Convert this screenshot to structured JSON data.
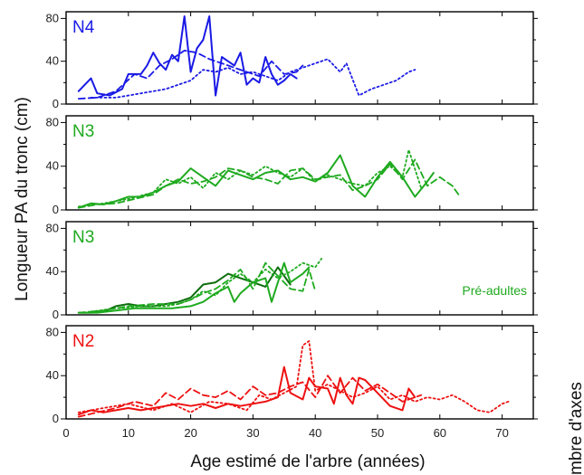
{
  "chart_data": {
    "type": "line",
    "xlabel": "Age estimé de l'arbre (années)",
    "ylabel": "Longueur PA du tronc (cm)",
    "right_label": "mbre d'axes",
    "xlim": [
      0,
      75
    ],
    "x_ticks": [
      0,
      10,
      20,
      30,
      40,
      50,
      60,
      70
    ],
    "ylim": [
      0,
      82
    ],
    "y_ticks": [
      0,
      40,
      80
    ],
    "grid": false,
    "panels": [
      {
        "label": "N4",
        "color": "#1a1ae6",
        "annotation": "",
        "series": [
          {
            "style": "solid",
            "x": [
              2,
              4,
              5,
              7,
              9,
              10,
              12,
              13,
              14,
              15,
              16,
              17,
              18,
              19,
              20,
              21,
              22,
              23,
              24,
              25,
              26,
              27,
              28,
              29,
              30,
              31,
              32,
              33,
              34,
              35,
              36,
              37
            ],
            "y": [
              12,
              24,
              10,
              8,
              14,
              28,
              28,
              36,
              48,
              38,
              32,
              46,
              40,
              82,
              30,
              52,
              60,
              82,
              8,
              44,
              40,
              36,
              48,
              18,
              24,
              20,
              44,
              28,
              18,
              22,
              28,
              24
            ]
          },
          {
            "style": "dashed",
            "x": [
              2,
              5,
              8,
              11,
              13,
              15,
              17,
              19,
              21,
              23,
              25,
              27,
              29,
              31,
              33,
              35,
              37,
              38
            ],
            "y": [
              5,
              6,
              12,
              28,
              24,
              36,
              42,
              50,
              48,
              42,
              38,
              34,
              30,
              26,
              40,
              28,
              30,
              36
            ]
          },
          {
            "style": "dotted",
            "x": [
              4,
              8,
              12,
              16,
              20,
              22,
              24,
              26,
              28,
              30,
              32,
              34,
              36,
              38,
              40,
              42,
              44,
              45,
              47,
              49,
              51,
              53,
              55,
              56
            ],
            "y": [
              6,
              6,
              10,
              14,
              22,
              32,
              30,
              34,
              28,
              30,
              26,
              22,
              30,
              34,
              38,
              42,
              30,
              38,
              8,
              14,
              18,
              22,
              30,
              32
            ]
          }
        ]
      },
      {
        "label": "N3",
        "color": "#1faa1f",
        "annotation": "",
        "series": [
          {
            "style": "solid",
            "x": [
              2,
              4,
              6,
              8,
              10,
              12,
              14,
              16,
              18,
              20,
              22,
              24,
              26,
              28,
              30,
              32,
              34,
              36,
              38,
              40,
              42,
              44,
              46,
              48,
              50,
              52,
              54,
              56,
              58,
              59
            ],
            "y": [
              2,
              6,
              5,
              8,
              12,
              12,
              16,
              22,
              26,
              38,
              30,
              22,
              36,
              32,
              28,
              34,
              36,
              28,
              30,
              26,
              34,
              50,
              22,
              12,
              30,
              44,
              30,
              12,
              26,
              34
            ]
          },
          {
            "style": "dashed",
            "x": [
              2,
              5,
              8,
              11,
              14,
              16,
              18,
              20,
              22,
              24,
              26,
              28,
              30,
              32,
              34,
              36,
              38,
              40,
              42,
              44,
              46,
              48,
              50,
              52,
              54,
              56,
              58,
              60,
              62,
              63
            ],
            "y": [
              2,
              5,
              6,
              10,
              14,
              22,
              28,
              24,
              26,
              30,
              38,
              36,
              30,
              28,
              24,
              36,
              38,
              28,
              30,
              32,
              18,
              22,
              28,
              42,
              28,
              46,
              22,
              30,
              22,
              14
            ]
          },
          {
            "style": "dotted",
            "x": [
              2,
              6,
              10,
              14,
              16,
              18,
              20,
              22,
              24,
              26,
              28,
              30,
              32,
              34,
              36,
              38,
              40,
              42,
              44,
              46,
              48,
              50,
              52,
              54,
              55,
              57
            ],
            "y": [
              3,
              6,
              10,
              16,
              28,
              24,
              30,
              20,
              34,
              28,
              36,
              32,
              40,
              34,
              30,
              38,
              26,
              32,
              28,
              24,
              22,
              34,
              40,
              30,
              55,
              20
            ]
          }
        ]
      },
      {
        "label": "N3",
        "color": "#1faa1f",
        "annotation": "Pré-adultes",
        "series": [
          {
            "style": "solid",
            "color": "#0e6e0e",
            "x": [
              2,
              4,
              6,
              8,
              10,
              12,
              14,
              16,
              18,
              20,
              22,
              24,
              26,
              28,
              30,
              32,
              34,
              36
            ],
            "y": [
              2,
              2,
              3,
              8,
              10,
              8,
              8,
              10,
              12,
              16,
              28,
              30,
              38,
              34,
              30,
              26,
              44,
              28
            ]
          },
          {
            "style": "solid",
            "x": [
              2,
              5,
              8,
              11,
              14,
              17,
              20,
              22,
              24,
              26,
              27,
              28,
              30,
              32,
              33,
              34,
              35,
              36,
              38,
              39
            ],
            "y": [
              2,
              2,
              4,
              6,
              6,
              6,
              8,
              12,
              20,
              26,
              12,
              20,
              30,
              34,
              12,
              30,
              48,
              30,
              38,
              44
            ]
          },
          {
            "style": "dashed",
            "x": [
              2,
              6,
              10,
              14,
              18,
              20,
              22,
              24,
              26,
              28,
              30,
              32,
              34,
              36,
              38,
              39,
              40
            ],
            "y": [
              2,
              4,
              8,
              10,
              10,
              14,
              20,
              24,
              32,
              42,
              24,
              48,
              36,
              24,
              22,
              42,
              22
            ]
          },
          {
            "style": "dotted",
            "x": [
              4,
              8,
              12,
              16,
              18,
              20,
              22,
              24,
              26,
              28,
              30,
              32,
              34,
              36,
              38,
              40,
              41
            ],
            "y": [
              3,
              6,
              8,
              8,
              10,
              14,
              22,
              18,
              30,
              38,
              30,
              42,
              34,
              40,
              48,
              44,
              52
            ]
          }
        ]
      },
      {
        "label": "N2",
        "color": "#ee1111",
        "annotation": "",
        "series": [
          {
            "style": "solid",
            "x": [
              2,
              4,
              6,
              8,
              10,
              12,
              14,
              16,
              18,
              20,
              22,
              24,
              26,
              28,
              30,
              32,
              34,
              35,
              36,
              38,
              39,
              40,
              42,
              43,
              44,
              45,
              46,
              47,
              48,
              50,
              52,
              54,
              55,
              56
            ],
            "y": [
              4,
              8,
              6,
              8,
              10,
              8,
              10,
              12,
              14,
              12,
              14,
              10,
              14,
              12,
              14,
              16,
              20,
              48,
              24,
              18,
              38,
              30,
              28,
              14,
              38,
              22,
              14,
              38,
              36,
              24,
              12,
              8,
              28,
              20
            ]
          },
          {
            "style": "dashed",
            "x": [
              2,
              5,
              8,
              11,
              14,
              16,
              18,
              20,
              22,
              24,
              26,
              28,
              30,
              32,
              34,
              36,
              38,
              40,
              42,
              44,
              46,
              48,
              50,
              52,
              54,
              56,
              57
            ],
            "y": [
              2,
              6,
              10,
              16,
              12,
              24,
              18,
              28,
              22,
              20,
              26,
              18,
              30,
              22,
              24,
              30,
              34,
              20,
              40,
              24,
              38,
              26,
              32,
              24,
              16,
              20,
              22
            ]
          },
          {
            "style": "dotted",
            "x": [
              2,
              6,
              10,
              14,
              17,
              20,
              23,
              26,
              29,
              31,
              33,
              35,
              37,
              38,
              39,
              40,
              42,
              44,
              46,
              48,
              50,
              52,
              54,
              56,
              58,
              60,
              62,
              64,
              66,
              68,
              70,
              71
            ],
            "y": [
              6,
              10,
              14,
              8,
              14,
              6,
              16,
              14,
              8,
              22,
              18,
              24,
              30,
              68,
              72,
              26,
              32,
              26,
              20,
              24,
              30,
              18,
              22,
              16,
              20,
              18,
              22,
              16,
              8,
              6,
              14,
              16
            ]
          }
        ]
      }
    ]
  }
}
